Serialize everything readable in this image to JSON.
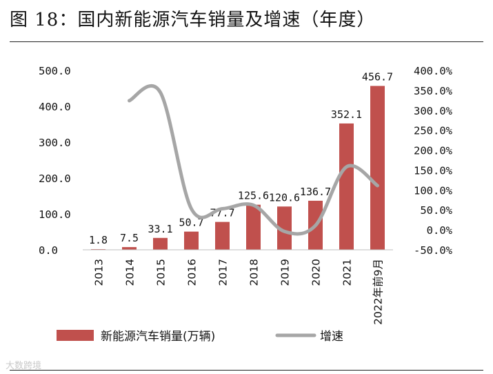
{
  "header": {
    "title": "图 18：国内新能源汽车销量及增速（年度）"
  },
  "watermark": "大数跨境",
  "colors": {
    "bar": "#c0504d",
    "line": "#a6a6a6",
    "text": "#111111"
  },
  "chart_data": {
    "type": "bar+line",
    "title": "国内新能源汽车销量及增速（年度）",
    "categories": [
      "2013",
      "2014",
      "2015",
      "2016",
      "2017",
      "2018",
      "2019",
      "2020",
      "2021",
      "2022年前9月"
    ],
    "series": [
      {
        "name": "新能源汽车销量(万辆)",
        "type": "bar",
        "axis": "left",
        "values": [
          1.8,
          7.5,
          33.1,
          50.7,
          77.7,
          125.6,
          120.6,
          136.7,
          352.1,
          456.7
        ],
        "labels": [
          "1.8",
          "7.5",
          "33.1",
          "50.7",
          "77.7",
          "125.6",
          "120.6",
          "136.7",
          "352.1",
          "456.7"
        ]
      },
      {
        "name": "增速",
        "type": "line",
        "axis": "right",
        "values": [
          null,
          324,
          345,
          53,
          53,
          62,
          -4,
          11,
          158,
          111
        ]
      }
    ],
    "y_left": {
      "min": 0,
      "max": 500,
      "ticks": [
        "0.0",
        "100.0",
        "200.0",
        "300.0",
        "400.0",
        "500.0"
      ]
    },
    "y_right": {
      "min": -50,
      "max": 400,
      "ticks": [
        "-50.0%",
        "0.0%",
        "50.0%",
        "100.0%",
        "150.0%",
        "200.0%",
        "250.0%",
        "300.0%",
        "350.0%",
        "400.0%"
      ]
    },
    "legend": [
      "新能源汽车销量(万辆)",
      "增速"
    ],
    "legend_position": "bottom"
  }
}
